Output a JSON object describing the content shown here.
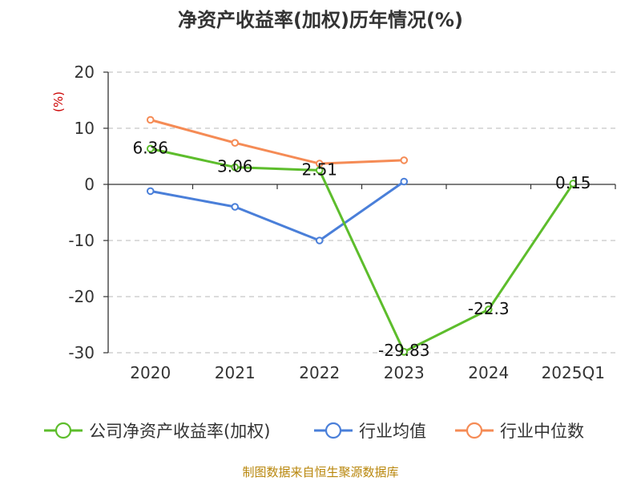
{
  "chart_data": {
    "type": "line",
    "title": "净资产收益率(加权)历年情况(%)",
    "ylabel": "(%)",
    "categories": [
      "2020",
      "2021",
      "2022",
      "2023",
      "2024",
      "2025Q1"
    ],
    "ylim": [
      -30,
      20
    ],
    "yticks": [
      20,
      10,
      0,
      -10,
      -20,
      -30
    ],
    "grid": true,
    "series": [
      {
        "name": "公司净资产收益率(加权)",
        "color": "#5dbd2c",
        "values": [
          6.36,
          3.06,
          2.51,
          -29.83,
          -22.3,
          0.15
        ],
        "labels": [
          "6.36",
          "3.06",
          "2.51",
          "-29.83",
          "-22.3",
          "0.15"
        ]
      },
      {
        "name": "行业均值",
        "color": "#4a7fd9",
        "values": [
          -1.2,
          -4.0,
          -10.0,
          0.5,
          null,
          null
        ]
      },
      {
        "name": "行业中位数",
        "color": "#f58b55",
        "values": [
          11.5,
          7.4,
          3.7,
          4.3,
          null,
          null
        ]
      }
    ],
    "legend_position": "bottom"
  },
  "source": "制图数据来自恒生聚源数据库"
}
